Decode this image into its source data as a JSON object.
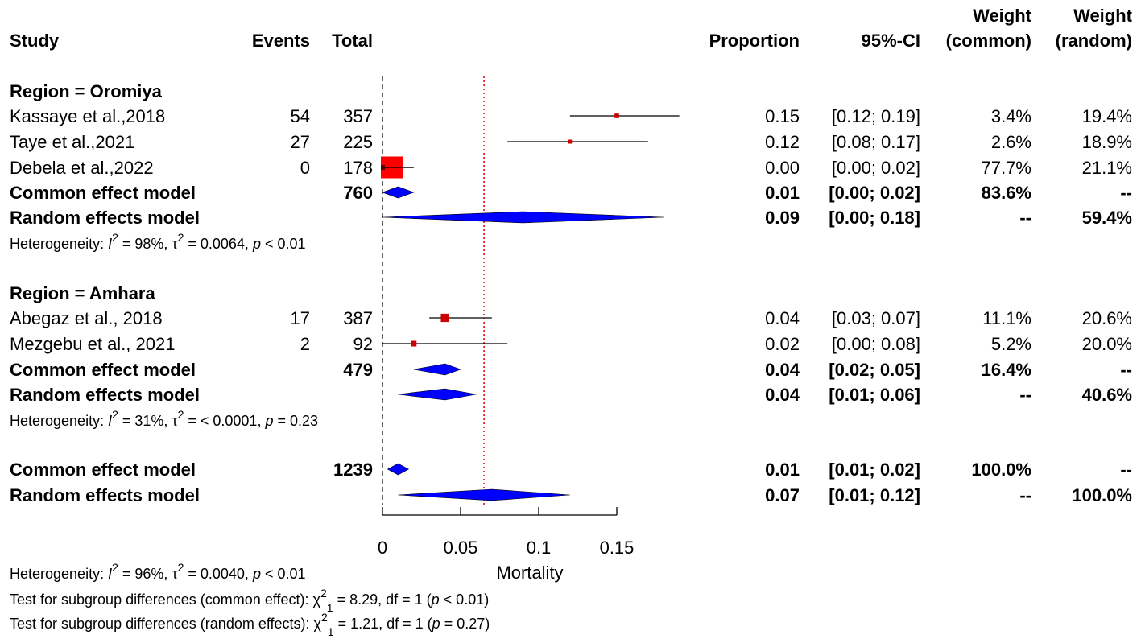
{
  "chart_data": {
    "type": "forest",
    "headers": {
      "study": "Study",
      "events": "Events",
      "total": "Total",
      "proportion": "Proportion",
      "ci": "95%-CI",
      "weight_common_line1": "Weight",
      "weight_common_line2": "(common)",
      "weight_random_line1": "Weight",
      "weight_random_line2": "(random)"
    },
    "groups": [
      {
        "label": "Region = Oromiya",
        "studies": [
          {
            "name": "Kassaye et al.,2018",
            "events": "54",
            "total": "357",
            "prop": 0.15,
            "lower": 0.12,
            "upper": 0.19,
            "prop_text": "0.15",
            "ci_text": "[0.12; 0.19]",
            "w_common": "3.4%",
            "w_random": "19.4%",
            "w_common_value": 3.4
          },
          {
            "name": "Taye et al.,2021",
            "events": "27",
            "total": "225",
            "prop": 0.12,
            "lower": 0.08,
            "upper": 0.17,
            "prop_text": "0.12",
            "ci_text": "[0.08; 0.17]",
            "w_common": "2.6%",
            "w_random": "18.9%",
            "w_common_value": 2.6
          },
          {
            "name": "Debela et al.,2022",
            "events": "0",
            "total": "178",
            "prop": 0.0,
            "lower": 0.0,
            "upper": 0.02,
            "prop_text": "0.00",
            "ci_text": "[0.00; 0.02]",
            "w_common": "77.7%",
            "w_random": "21.1%",
            "w_common_value": 77.7
          }
        ],
        "common": {
          "label": "Common effect model",
          "total": "760",
          "est": 0.01,
          "lower": 0.0,
          "upper": 0.02,
          "prop_text": "0.01",
          "ci_text": "[0.00; 0.02]",
          "w_common": "83.6%",
          "w_random": "--"
        },
        "random": {
          "label": "Random effects model",
          "est": 0.09,
          "lower": 0.0,
          "upper": 0.18,
          "prop_text": "0.09",
          "ci_text": "[0.00; 0.18]",
          "w_common": "--",
          "w_random": "59.4%"
        },
        "heterogeneity": {
          "prefix": "Heterogeneity: ",
          "i2": "I",
          "i2_val": " = 98%, ",
          "tau": "τ",
          "tau_val": " = 0.0064, ",
          "p": "p",
          "p_val": " < 0.01"
        }
      },
      {
        "label": "Region = Amhara",
        "studies": [
          {
            "name": "Abegaz et al., 2018",
            "events": "17",
            "total": "387",
            "prop": 0.04,
            "lower": 0.03,
            "upper": 0.07,
            "prop_text": "0.04",
            "ci_text": "[0.03; 0.07]",
            "w_common": "11.1%",
            "w_random": "20.6%",
            "w_common_value": 11.1
          },
          {
            "name": "Mezgebu et al., 2021",
            "events": "2",
            "total": "92",
            "prop": 0.02,
            "lower": 0.0,
            "upper": 0.08,
            "prop_text": "0.02",
            "ci_text": "[0.00; 0.08]",
            "w_common": "5.2%",
            "w_random": "20.0%",
            "w_common_value": 5.2
          }
        ],
        "common": {
          "label": "Common effect model",
          "total": "479",
          "est": 0.04,
          "lower": 0.02,
          "upper": 0.05,
          "prop_text": "0.04",
          "ci_text": "[0.02; 0.05]",
          "w_common": "16.4%",
          "w_random": "--"
        },
        "random": {
          "label": "Random effects model",
          "est": 0.04,
          "lower": 0.01,
          "upper": 0.06,
          "prop_text": "0.04",
          "ci_text": "[0.01; 0.06]",
          "w_common": "--",
          "w_random": "40.6%"
        },
        "heterogeneity": {
          "prefix": "Heterogeneity: ",
          "i2": "I",
          "i2_val": " = 31%, ",
          "tau": "τ",
          "tau_val": " = < 0.0001, ",
          "p": "p",
          "p_val": " = 0.23"
        }
      }
    ],
    "overall": {
      "common": {
        "label": "Common effect model",
        "total": "1239",
        "est": 0.01,
        "lower": 0.01,
        "upper": 0.02,
        "prop_text": "0.01",
        "ci_text": "[0.01; 0.02]",
        "w_common": "100.0%",
        "w_random": "--"
      },
      "random": {
        "label": "Random effects model",
        "est": 0.07,
        "lower": 0.01,
        "upper": 0.12,
        "prop_text": "0.07",
        "ci_text": "[0.01; 0.12]",
        "w_common": "--",
        "w_random": "100.0%"
      },
      "heterogeneity": {
        "prefix": "Heterogeneity: ",
        "i2": "I",
        "i2_val": " = 96%, ",
        "tau": "τ",
        "tau_val": " = 0.0040, ",
        "p": "p",
        "p_val": " < 0.01"
      },
      "subgroup_common": {
        "prefix": "Test for subgroup differences (common effect): ",
        "chi": "χ",
        "chi_val": " = 8.29, df = 1 (",
        "p": "p",
        "p_val": " < 0.01)"
      },
      "subgroup_random": {
        "prefix": "Test for subgroup differences (random effects): ",
        "chi": "χ",
        "chi_val": " = 1.21, df = 1 (",
        "p": "p",
        "p_val": " = 0.27)"
      }
    },
    "axis": {
      "xlabel": "Mortality",
      "xlim": [
        0,
        0.15
      ],
      "ticks": [
        0,
        0.05,
        0.1,
        0.15
      ],
      "tick_labels": [
        "0",
        "0.05",
        "0.1",
        "0.15"
      ],
      "null_line": 0,
      "reference_line": 0.065
    },
    "colors": {
      "study_square": "#cc0000",
      "big_square": "#ff0000",
      "diamond": "#0000ff",
      "reference_line": "#dd0000",
      "null_line": "#333333"
    }
  }
}
